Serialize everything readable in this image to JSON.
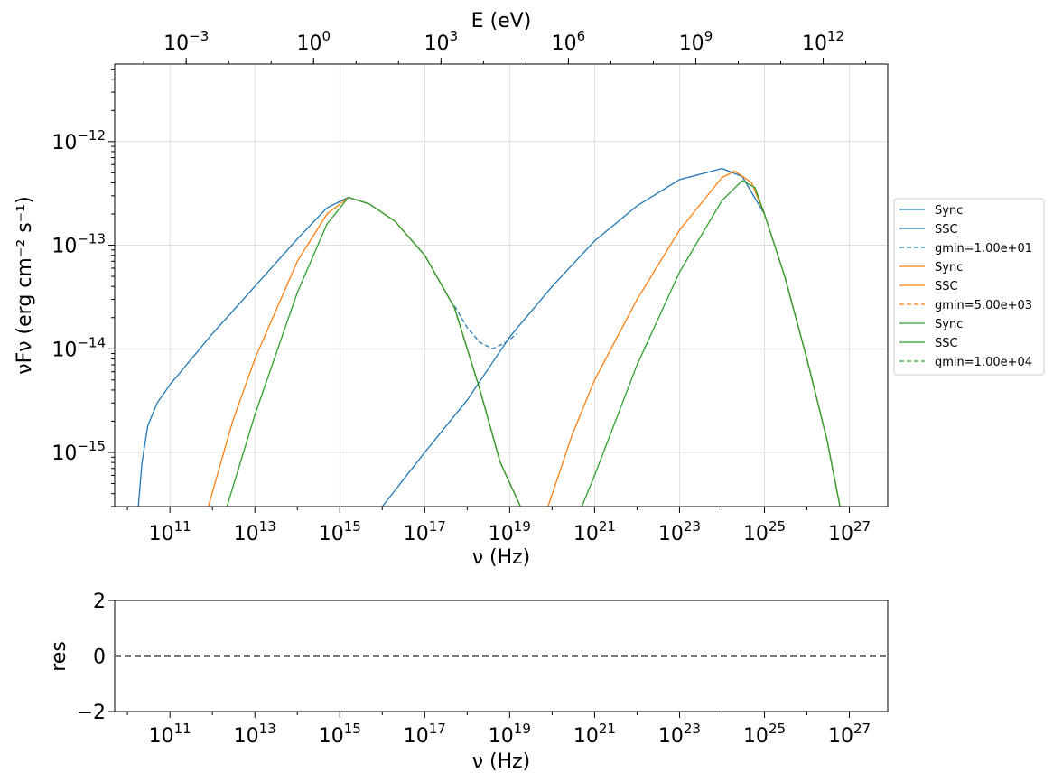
{
  "chart_data": [
    {
      "type": "line",
      "xlabel": "ν  (Hz)",
      "ylabel": "νFν  (erg cm⁻² s⁻¹)",
      "top_xlabel": "E (eV)",
      "xscale": "log",
      "yscale": "log",
      "xlim": [
        5000000000.0,
        8e+27
      ],
      "ylim": [
        3e-16,
        5.6e-12
      ],
      "x_ticks": [
        "10^11",
        "10^13",
        "10^15",
        "10^17",
        "10^19",
        "10^21",
        "10^23",
        "10^25",
        "10^27"
      ],
      "y_ticks": [
        "10^-15",
        "10^-14",
        "10^-13",
        "10^-12"
      ],
      "top_x_ticks": [
        "10^-3",
        "10^0",
        "10^3",
        "10^6",
        "10^9",
        "10^12"
      ],
      "grid": true,
      "legend_placement": "outside-right",
      "legend": [
        {
          "label": "Sync",
          "color": "#1f77b4",
          "style": "solid"
        },
        {
          "label": "SSC",
          "color": "#1f77b4",
          "style": "solid"
        },
        {
          "label": "gmin=1.00e+01",
          "color": "#1f77b4",
          "style": "dashed"
        },
        {
          "label": "Sync",
          "color": "#ff7f0e",
          "style": "solid"
        },
        {
          "label": "SSC",
          "color": "#ff7f0e",
          "style": "solid"
        },
        {
          "label": "gmin=5.00e+03",
          "color": "#ff7f0e",
          "style": "dashed"
        },
        {
          "label": "Sync",
          "color": "#2ca02c",
          "style": "solid"
        },
        {
          "label": "SSC",
          "color": "#2ca02c",
          "style": "solid"
        },
        {
          "label": "gmin=1.00e+04",
          "color": "#2ca02c",
          "style": "dashed"
        }
      ],
      "series": [
        {
          "legend_index": 0,
          "color": "#1f77b4",
          "style": "solid",
          "points": [
            [
              18000000000.0,
              3e-16
            ],
            [
              22000000000.0,
              8e-16
            ],
            [
              30000000000.0,
              1.8e-15
            ],
            [
              50000000000.0,
              3e-15
            ],
            [
              100000000000.0,
              4.5e-15
            ],
            [
              1000000000000.0,
              1.4e-14
            ],
            [
              10000000000000.0,
              4e-14
            ],
            [
              100000000000000.0,
              1.15e-13
            ],
            [
              500000000000000.0,
              2.3e-13
            ],
            [
              1600000000000000.0,
              2.9e-13
            ],
            [
              5000000000000000.0,
              2.5e-13
            ],
            [
              2e+16,
              1.7e-13
            ],
            [
              1e+17,
              8e-14
            ],
            [
              5e+17,
              2.5e-14
            ],
            [
              2e+18,
              4e-15
            ],
            [
              6e+18,
              8e-16
            ],
            [
              1.8e+19,
              3e-16
            ]
          ]
        },
        {
          "legend_index": 1,
          "color": "#1f77b4",
          "style": "solid",
          "points": [
            [
              1e+16,
              3e-16
            ],
            [
              1e+17,
              1e-15
            ],
            [
              1e+18,
              3.2e-15
            ],
            [
              1e+19,
              1.3e-14
            ],
            [
              1e+20,
              4e-14
            ],
            [
              1e+21,
              1.1e-13
            ],
            [
              1e+22,
              2.4e-13
            ],
            [
              1e+23,
              4.3e-13
            ],
            [
              1e+24,
              5.5e-13
            ],
            [
              3e+24,
              4.6e-13
            ],
            [
              1e+25,
              2e-13
            ],
            [
              3e+25,
              5e-14
            ],
            [
              1e+26,
              8e-15
            ],
            [
              3e+26,
              1.3e-15
            ],
            [
              6e+26,
              3e-16
            ]
          ]
        },
        {
          "legend_index": 2,
          "color": "#1f77b4",
          "style": "dashed",
          "points": [
            [
              5e+17,
              2.6e-14
            ],
            [
              1e+18,
              1.6e-14
            ],
            [
              2e+18,
              1.15e-14
            ],
            [
              4e+18,
              1e-14
            ],
            [
              8e+18,
              1.15e-14
            ],
            [
              1.5e+19,
              1.4e-14
            ]
          ]
        },
        {
          "legend_index": 3,
          "color": "#ff7f0e",
          "style": "solid",
          "points": [
            [
              800000000000.0,
              3e-16
            ],
            [
              3000000000000.0,
              2e-15
            ],
            [
              10000000000000.0,
              8e-15
            ],
            [
              100000000000000.0,
              7e-14
            ],
            [
              500000000000000.0,
              2e-13
            ],
            [
              1600000000000000.0,
              2.9e-13
            ],
            [
              5000000000000000.0,
              2.5e-13
            ],
            [
              2e+16,
              1.7e-13
            ],
            [
              1e+17,
              8e-14
            ],
            [
              5e+17,
              2.5e-14
            ],
            [
              2e+18,
              4e-15
            ],
            [
              6e+18,
              8e-16
            ],
            [
              1.8e+19,
              3e-16
            ]
          ]
        },
        {
          "legend_index": 4,
          "color": "#ff7f0e",
          "style": "solid",
          "points": [
            [
              8e+19,
              3e-16
            ],
            [
              3e+20,
              1.5e-15
            ],
            [
              1e+21,
              5e-15
            ],
            [
              1e+22,
              3e-14
            ],
            [
              1e+23,
              1.4e-13
            ],
            [
              1e+24,
              4.5e-13
            ],
            [
              2e+24,
              5.2e-13
            ],
            [
              5e+24,
              4e-13
            ],
            [
              1e+25,
              2e-13
            ],
            [
              3e+25,
              5e-14
            ],
            [
              1e+26,
              8e-15
            ],
            [
              3e+26,
              1.3e-15
            ],
            [
              6e+26,
              3e-16
            ]
          ]
        },
        {
          "legend_index": 5,
          "color": "#ff7f0e",
          "style": "dashed",
          "points": []
        },
        {
          "legend_index": 6,
          "color": "#2ca02c",
          "style": "solid",
          "points": [
            [
              2200000000000.0,
              3e-16
            ],
            [
              10000000000000.0,
              2.3e-15
            ],
            [
              100000000000000.0,
              3.5e-14
            ],
            [
              500000000000000.0,
              1.6e-13
            ],
            [
              1600000000000000.0,
              2.9e-13
            ],
            [
              5000000000000000.0,
              2.5e-13
            ],
            [
              2e+16,
              1.7e-13
            ],
            [
              1e+17,
              8e-14
            ],
            [
              5e+17,
              2.5e-14
            ],
            [
              2e+18,
              4e-15
            ],
            [
              6e+18,
              8e-16
            ],
            [
              1.8e+19,
              3e-16
            ]
          ]
        },
        {
          "legend_index": 7,
          "color": "#2ca02c",
          "style": "solid",
          "points": [
            [
              5e+20,
              3e-16
            ],
            [
              1e+21,
              6e-16
            ],
            [
              1e+22,
              7e-15
            ],
            [
              1e+23,
              5.5e-14
            ],
            [
              1e+24,
              2.7e-13
            ],
            [
              3e+24,
              4.2e-13
            ],
            [
              6e+24,
              3.6e-13
            ],
            [
              1e+25,
              2e-13
            ],
            [
              3e+25,
              5e-14
            ],
            [
              1e+26,
              8e-15
            ],
            [
              3e+26,
              1.3e-15
            ],
            [
              6e+26,
              3e-16
            ]
          ]
        },
        {
          "legend_index": 8,
          "color": "#2ca02c",
          "style": "dashed",
          "points": []
        }
      ]
    },
    {
      "type": "line",
      "xlabel": "ν  (Hz)",
      "ylabel": "res",
      "xscale": "log",
      "xlim": [
        5000000000.0,
        8e+27
      ],
      "ylim": [
        -2,
        2
      ],
      "x_ticks": [
        "10^11",
        "10^13",
        "10^15",
        "10^17",
        "10^19",
        "10^21",
        "10^23",
        "10^25",
        "10^27"
      ],
      "y_ticks": [
        "−2",
        "0",
        "2"
      ],
      "grid": false,
      "series": [
        {
          "color": "#000000",
          "style": "dashed",
          "points": [
            [
              5000000000.0,
              0
            ],
            [
              8e+27,
              0
            ]
          ]
        }
      ]
    }
  ]
}
